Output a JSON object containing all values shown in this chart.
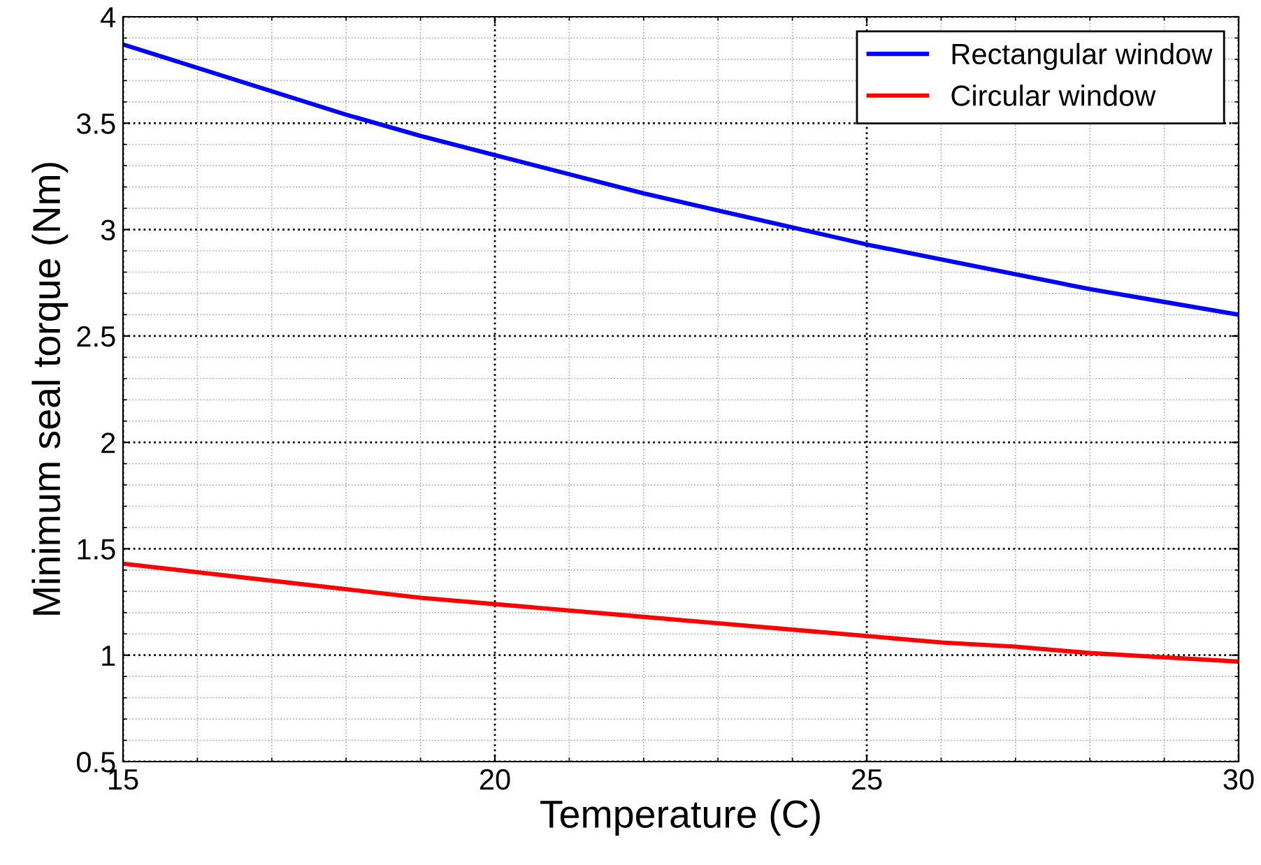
{
  "chart_data": {
    "type": "line",
    "xlabel": "Temperature (C)",
    "ylabel": "Minimum seal torque (Nm)",
    "x": [
      15,
      16,
      17,
      18,
      19,
      20,
      21,
      22,
      23,
      24,
      25,
      26,
      27,
      28,
      29,
      30
    ],
    "series": [
      {
        "name": "Rectangular window",
        "color": "#0000ff",
        "values": [
          3.87,
          3.76,
          3.65,
          3.54,
          3.44,
          3.35,
          3.26,
          3.17,
          3.09,
          3.01,
          2.93,
          2.86,
          2.79,
          2.72,
          2.66,
          2.6
        ]
      },
      {
        "name": "Circular window",
        "color": "#ff0000",
        "values": [
          1.43,
          1.39,
          1.35,
          1.31,
          1.27,
          1.24,
          1.21,
          1.18,
          1.15,
          1.12,
          1.09,
          1.06,
          1.04,
          1.01,
          0.99,
          0.97
        ]
      }
    ],
    "xlim": [
      15,
      30
    ],
    "ylim": [
      0.5,
      4
    ],
    "xticks": [
      15,
      20,
      25,
      30
    ],
    "yticks": [
      0.5,
      1,
      1.5,
      2,
      2.5,
      3,
      3.5,
      4
    ],
    "grid": true,
    "legend": "top right",
    "line_style": "solid",
    "marker": "none"
  }
}
